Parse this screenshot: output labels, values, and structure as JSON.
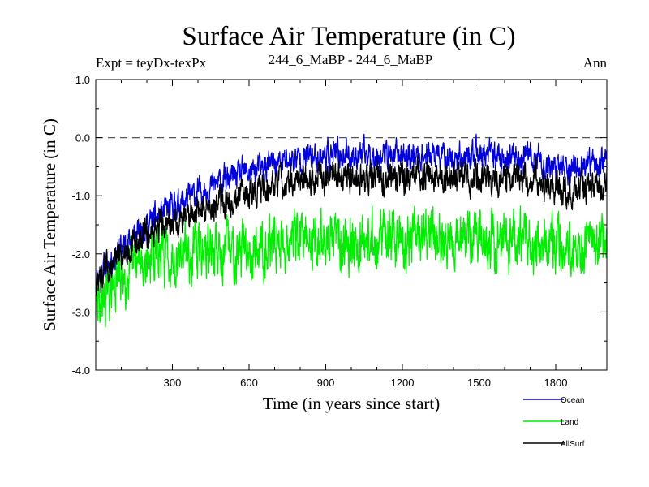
{
  "chart_data": {
    "type": "line",
    "title": "Surface Air Temperature (in C)",
    "subtitle_left": "Expt = teyDx-texPx",
    "subtitle_center": "244_6_MaBP - 244_6_MaBP",
    "subtitle_right": "Ann",
    "xlabel": "Time (in years since start)",
    "ylabel": "Surface Air Temperature (in C)",
    "xlim": [
      0,
      2000
    ],
    "ylim": [
      -4.0,
      1.0
    ],
    "x_ticks": [
      300,
      900,
      1500
    ],
    "x_tick_labels": [
      "300",
      "600",
      "900",
      "1200",
      "1500",
      "1800"
    ],
    "x_tick_values": [
      300,
      600,
      900,
      1200,
      1500,
      1800
    ],
    "y_tick_values": [
      -4.0,
      -3.0,
      -2.0,
      -1.0,
      0.0,
      1.0
    ],
    "y_tick_labels": [
      "-4.0",
      "-3.0",
      "-2.0",
      "-1.0",
      "0.0",
      "1.0"
    ],
    "reference_line": {
      "y": 0.0,
      "style": "dashed"
    },
    "series": [
      {
        "name": "Ocean",
        "color": "#0000dd",
        "mean": {
          "x": [
            0,
            100,
            200,
            300,
            400,
            500,
            600,
            700,
            800,
            900,
            1000,
            1100,
            1200,
            1300,
            1400,
            1500,
            1600,
            1700,
            1800,
            1900,
            2000
          ],
          "y": [
            -2.4,
            -1.9,
            -1.5,
            -1.2,
            -0.95,
            -0.75,
            -0.6,
            -0.45,
            -0.35,
            -0.3,
            -0.3,
            -0.3,
            -0.3,
            -0.3,
            -0.35,
            -0.3,
            -0.35,
            -0.35,
            -0.5,
            -0.55,
            -0.4
          ]
        },
        "noise": 0.18
      },
      {
        "name": "Land",
        "color": "#00ee00",
        "mean": {
          "x": [
            0,
            100,
            200,
            300,
            400,
            500,
            600,
            700,
            800,
            900,
            1000,
            1100,
            1200,
            1300,
            1400,
            1500,
            1600,
            1700,
            1800,
            1900,
            2000
          ],
          "y": [
            -2.9,
            -2.4,
            -2.1,
            -2.0,
            -1.95,
            -1.95,
            -1.9,
            -1.8,
            -1.75,
            -1.75,
            -1.75,
            -1.75,
            -1.75,
            -1.75,
            -1.75,
            -1.75,
            -1.75,
            -1.8,
            -1.85,
            -1.9,
            -1.8
          ]
        },
        "noise": 0.35
      },
      {
        "name": "AllSurf",
        "color": "#000000",
        "mean": {
          "x": [
            0,
            100,
            200,
            300,
            400,
            500,
            600,
            700,
            800,
            900,
            1000,
            1100,
            1200,
            1300,
            1400,
            1500,
            1600,
            1700,
            1800,
            1900,
            2000
          ],
          "y": [
            -2.5,
            -2.0,
            -1.65,
            -1.45,
            -1.25,
            -1.1,
            -0.95,
            -0.8,
            -0.7,
            -0.65,
            -0.65,
            -0.7,
            -0.7,
            -0.65,
            -0.75,
            -0.65,
            -0.7,
            -0.7,
            -0.85,
            -0.9,
            -0.75
          ]
        },
        "noise": 0.2
      }
    ],
    "legend": [
      {
        "label": "Ocean",
        "color": "#0000dd"
      },
      {
        "label": "Land",
        "color": "#00ee00"
      },
      {
        "label": "AllSurf",
        "color": "#000000"
      }
    ],
    "legend_position": "bottom-right"
  }
}
